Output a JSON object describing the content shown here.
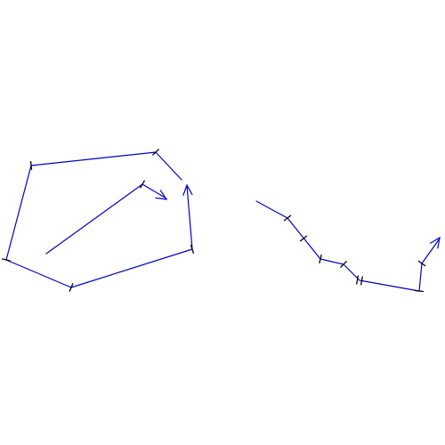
{
  "colors": {
    "line": "#0000cc",
    "tick": "#000000"
  }
}
